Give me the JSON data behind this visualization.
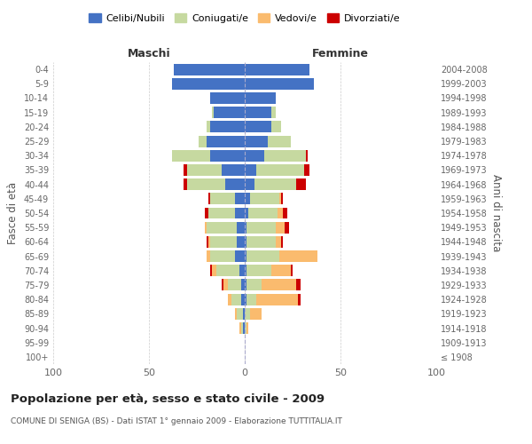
{
  "age_groups": [
    "100+",
    "95-99",
    "90-94",
    "85-89",
    "80-84",
    "75-79",
    "70-74",
    "65-69",
    "60-64",
    "55-59",
    "50-54",
    "45-49",
    "40-44",
    "35-39",
    "30-34",
    "25-29",
    "20-24",
    "15-19",
    "10-14",
    "5-9",
    "0-4"
  ],
  "birth_years": [
    "≤ 1908",
    "1909-1913",
    "1914-1918",
    "1919-1923",
    "1924-1928",
    "1929-1933",
    "1934-1938",
    "1939-1943",
    "1944-1948",
    "1949-1953",
    "1954-1958",
    "1959-1963",
    "1964-1968",
    "1969-1973",
    "1974-1978",
    "1979-1983",
    "1984-1988",
    "1989-1993",
    "1994-1998",
    "1999-2003",
    "2004-2008"
  ],
  "colors": {
    "celibe": "#4472C4",
    "coniugato": "#C6D9A0",
    "vedovo": "#FABB6E",
    "divorziato": "#CC0000"
  },
  "maschi": {
    "celibe": [
      0,
      0,
      1,
      1,
      2,
      2,
      3,
      5,
      4,
      4,
      5,
      5,
      10,
      12,
      18,
      20,
      18,
      16,
      18,
      38,
      37
    ],
    "coniugato": [
      0,
      0,
      1,
      3,
      5,
      7,
      12,
      13,
      14,
      16,
      14,
      13,
      20,
      18,
      20,
      4,
      2,
      1,
      0,
      0,
      0
    ],
    "vedovo": [
      0,
      0,
      1,
      1,
      2,
      2,
      2,
      2,
      1,
      1,
      0,
      0,
      0,
      0,
      0,
      0,
      0,
      0,
      0,
      0,
      0
    ],
    "divorziato": [
      0,
      0,
      0,
      0,
      0,
      1,
      1,
      0,
      1,
      0,
      2,
      1,
      2,
      2,
      0,
      0,
      0,
      0,
      0,
      0,
      0
    ]
  },
  "femmine": {
    "nubile": [
      0,
      0,
      0,
      0,
      1,
      1,
      1,
      1,
      1,
      1,
      2,
      3,
      5,
      6,
      10,
      12,
      14,
      14,
      16,
      36,
      34
    ],
    "coniugata": [
      0,
      0,
      1,
      3,
      5,
      8,
      13,
      17,
      15,
      15,
      15,
      15,
      22,
      25,
      22,
      12,
      5,
      2,
      0,
      0,
      0
    ],
    "vedova": [
      0,
      0,
      1,
      6,
      22,
      18,
      10,
      20,
      3,
      5,
      3,
      1,
      0,
      0,
      0,
      0,
      0,
      0,
      0,
      0,
      0
    ],
    "divorziata": [
      0,
      0,
      0,
      0,
      1,
      2,
      1,
      0,
      1,
      2,
      2,
      1,
      5,
      3,
      1,
      0,
      0,
      0,
      0,
      0,
      0
    ]
  },
  "xlim": 100,
  "title": "Popolazione per età, sesso e stato civile - 2009",
  "subtitle": "COMUNE DI SENIGA (BS) - Dati ISTAT 1° gennaio 2009 - Elaborazione TUTTITALIA.IT",
  "ylabel_left": "Fasce di età",
  "ylabel_right": "Anni di nascita",
  "xlabel_maschi": "Maschi",
  "xlabel_femmine": "Femmine",
  "legend_labels": [
    "Celibi/Nubili",
    "Coniugati/e",
    "Vedovi/e",
    "Divorziati/e"
  ],
  "background_color": "#ffffff",
  "bar_height": 0.8
}
